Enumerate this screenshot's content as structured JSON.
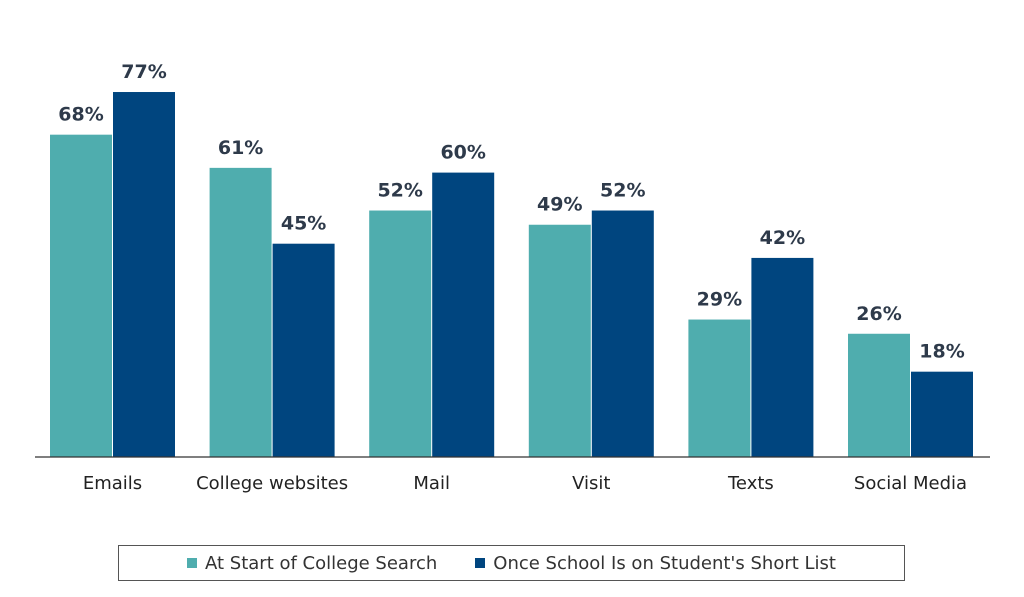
{
  "chart_data": {
    "type": "bar",
    "categories": [
      "Emails",
      "College websites",
      "Mail",
      "Visit",
      "Texts",
      "Social Media"
    ],
    "series": [
      {
        "name": "At Start of College Search",
        "values": [
          68,
          61,
          52,
          49,
          29,
          26
        ],
        "labels": [
          "68%",
          "61%",
          "52%",
          "49%",
          "29%",
          "26%"
        ],
        "color": "#4fadae"
      },
      {
        "name": "Once School Is on Student's Short List",
        "values": [
          77,
          45,
          60,
          52,
          42,
          18
        ],
        "labels": [
          "77%",
          "45%",
          "60%",
          "52%",
          "42%",
          "18%"
        ],
        "color": "#00457f"
      }
    ],
    "ylim": [
      0,
      85
    ],
    "grid": false,
    "legend_position": "bottom"
  }
}
